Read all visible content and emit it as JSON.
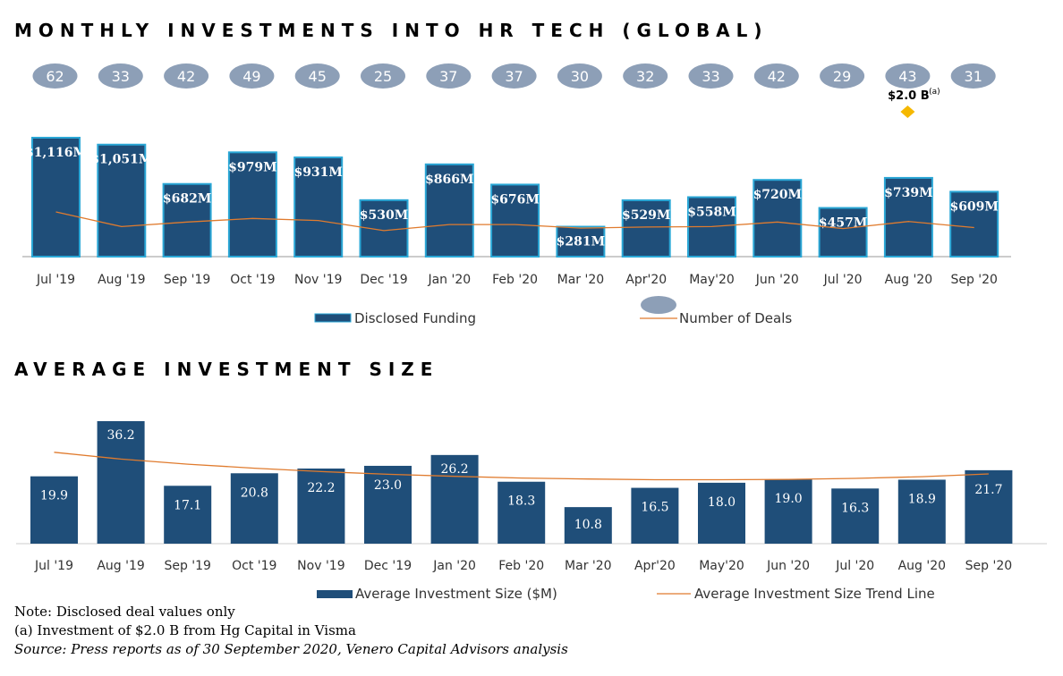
{
  "chart1_title": "MONTHLY INVESTMENTS INTO HR TECH (GLOBAL)",
  "chart2_title": "AVERAGE INVESTMENT SIZE",
  "colors": {
    "bar_fill": "#1f4e79",
    "bar_border": "#2aa7d6",
    "bar_fill_2": "#1f4e79",
    "trend_line": "#e07b2e",
    "deal_bubble": "#8d9fb7",
    "deal_text": "#ffffff",
    "diamond": "#f5b800",
    "axis": "#999999"
  },
  "chart_data": [
    {
      "type": "bar",
      "title": "MONTHLY INVESTMENTS INTO HR TECH (GLOBAL)",
      "categories": [
        "Jul '19",
        "Aug '19",
        "Sep '19",
        "Oct '19",
        "Nov '19",
        "Dec '19",
        "Jan '20",
        "Feb '20",
        "Mar '20",
        "Apr'20",
        "May'20",
        "Jun '20",
        "Jul '20",
        "Aug '20",
        "Sep '20"
      ],
      "series": [
        {
          "name": "Disclosed Funding",
          "unit": "$M",
          "values": [
            1116,
            1051,
            682,
            979,
            931,
            530,
            866,
            676,
            281,
            529,
            558,
            720,
            457,
            739,
            609
          ],
          "labels": [
            "$1,116M",
            "$1,051M",
            "$682M",
            "$979M",
            "$931M",
            "$530M",
            "$866M",
            "$676M",
            "$281M",
            "$529M",
            "$558M",
            "$720M",
            "$457M",
            "$739M",
            "$609M"
          ]
        },
        {
          "name": "Number of Deals",
          "type": "line",
          "values": [
            62,
            33,
            42,
            49,
            45,
            25,
            37,
            37,
            30,
            32,
            33,
            42,
            29,
            43,
            31
          ]
        }
      ],
      "annotation": {
        "category": "Aug '20",
        "text": "$2.0 B",
        "superscript": "(a)",
        "marker": "diamond"
      },
      "ylim": [
        0,
        1200
      ],
      "legend": {
        "position": "bottom",
        "entries": [
          "Disclosed Funding",
          "Number of Deals"
        ]
      }
    },
    {
      "type": "bar",
      "title": "AVERAGE INVESTMENT SIZE",
      "categories": [
        "Jul '19",
        "Aug '19",
        "Sep '19",
        "Oct '19",
        "Nov '19",
        "Dec '19",
        "Jan '20",
        "Feb '20",
        "Mar '20",
        "Apr'20",
        "May'20",
        "Jun '20",
        "Jul '20",
        "Aug '20",
        "Sep '20"
      ],
      "series": [
        {
          "name": "Average Investment Size ($M)",
          "values": [
            19.9,
            36.2,
            17.1,
            20.8,
            22.2,
            23.0,
            26.2,
            18.3,
            10.8,
            16.5,
            18.0,
            19.0,
            16.3,
            18.9,
            21.7
          ],
          "labels": [
            "19.9",
            "36.2",
            "17.1",
            "20.8",
            "22.2",
            "23.0",
            "26.2",
            "18.3",
            "10.8",
            "16.5",
            "18.0",
            "19.0",
            "16.3",
            "18.9",
            "21.7"
          ]
        },
        {
          "name": "Average Investment Size Trend Line",
          "type": "line",
          "values": [
            27.0,
            25.0,
            23.5,
            22.3,
            21.3,
            20.5,
            19.9,
            19.4,
            19.1,
            18.9,
            18.9,
            19.0,
            19.3,
            19.8,
            20.6
          ]
        }
      ],
      "ylim": [
        0,
        38
      ],
      "legend": {
        "position": "bottom",
        "entries": [
          "Average Investment Size ($M)",
          "Average Investment Size Trend Line"
        ]
      }
    }
  ],
  "notes": {
    "note": "Note: Disclosed deal values only",
    "footnote_a": "(a) Investment of $2.0 B from Hg Capital in Visma",
    "source": "Source: Press reports as of 30 September 2020,  Venero Capital Advisors analysis"
  }
}
